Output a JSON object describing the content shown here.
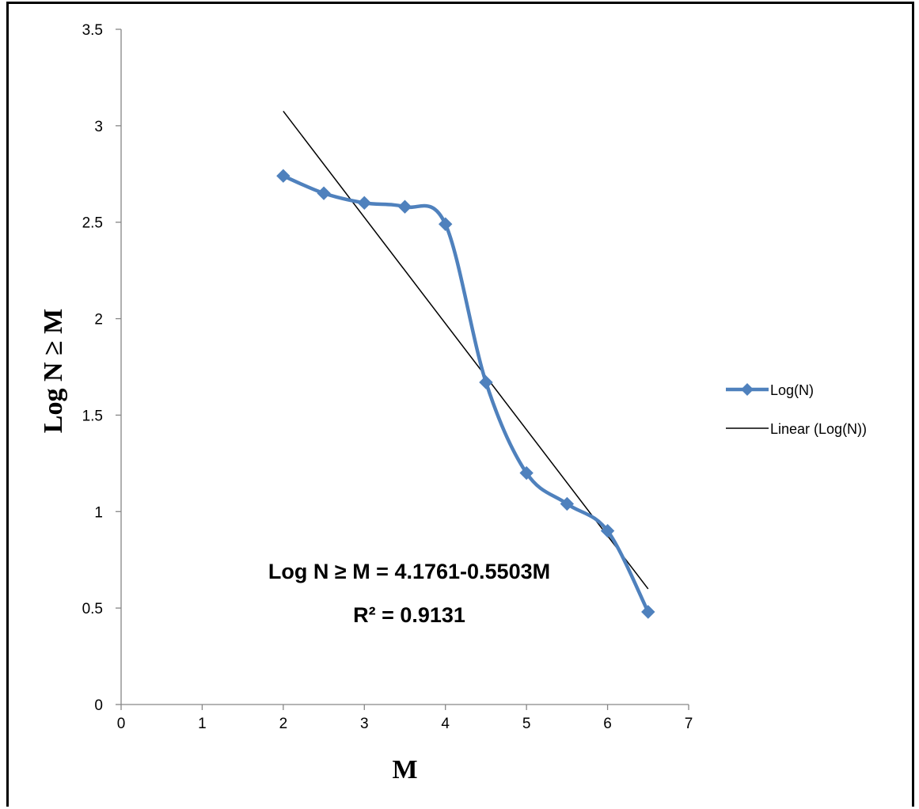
{
  "chart_data": {
    "type": "line",
    "xlabel": "M",
    "ylabel": "Log N ≥ M",
    "xlim": [
      0,
      7
    ],
    "ylim": [
      0,
      3.5
    ],
    "x_ticks": [
      "0",
      "1",
      "2",
      "3",
      "4",
      "5",
      "6",
      "7"
    ],
    "y_ticks": [
      "0",
      "0.5",
      "1",
      "1.5",
      "2",
      "2.5",
      "3",
      "3.5"
    ],
    "grid": false,
    "legend_position": "right",
    "series": [
      {
        "name": "Log(N)",
        "color": "#4F81BD",
        "marker": "diamond",
        "smooth": true,
        "x": [
          2,
          2.5,
          3,
          3.5,
          4,
          4.5,
          5,
          5.5,
          6,
          6.5
        ],
        "y": [
          2.74,
          2.65,
          2.6,
          2.58,
          2.49,
          1.67,
          1.2,
          1.04,
          0.9,
          0.48
        ]
      }
    ],
    "trendline": {
      "name": "Linear (Log(N))",
      "color": "#000000",
      "intercept": 4.1761,
      "slope": -0.5503,
      "x_range": [
        2,
        6.5
      ]
    },
    "equation_text": "Log N ≥ M = 4.1761-0.5503M",
    "r2_text": "R² = 0.9131"
  }
}
